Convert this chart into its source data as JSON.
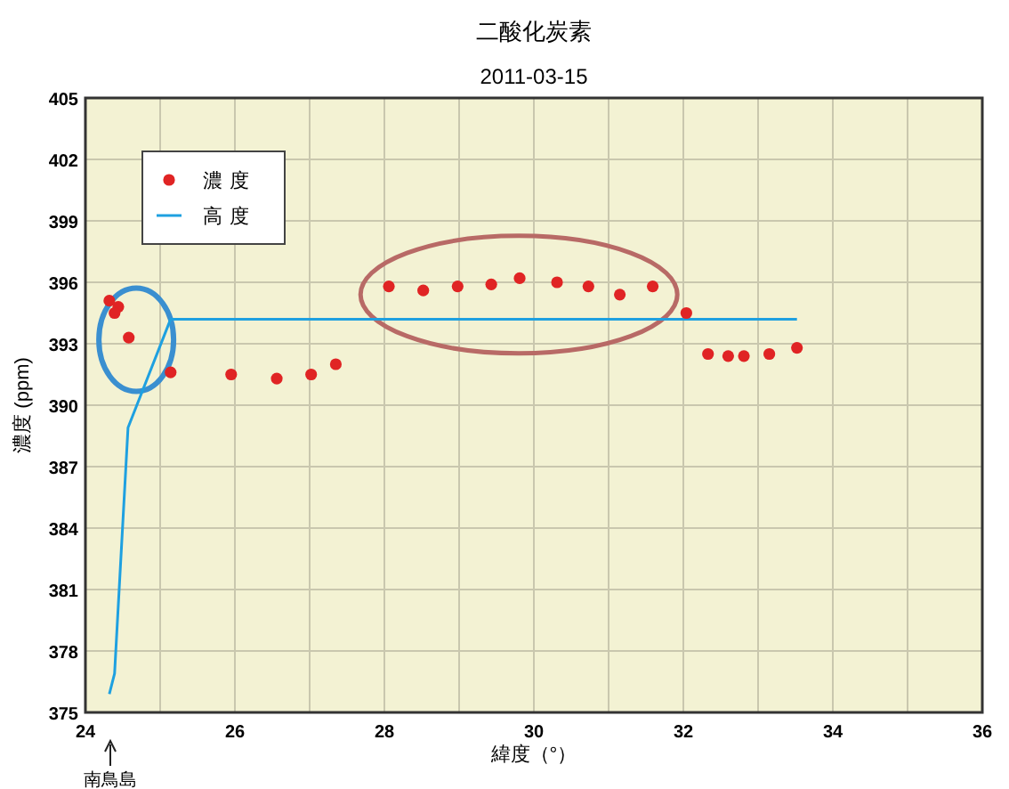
{
  "chart_data": {
    "type": "scatter",
    "title": "二酸化炭素",
    "subtitle": "2011-03-15",
    "xlabel": "緯度（°）",
    "ylabel": "濃度 (ppm)",
    "xlim": [
      24,
      36
    ],
    "ylim": [
      375,
      405
    ],
    "xticks": [
      24,
      {
        "value": 25,
        "label": null
      },
      26,
      {
        "value": 27,
        "label": null
      },
      28,
      {
        "value": 29,
        "label": null
      },
      30,
      {
        "value": 31,
        "label": null
      },
      32,
      {
        "value": 33,
        "label": null
      },
      34,
      {
        "value": 35,
        "label": null
      },
      36
    ],
    "yticks": [
      375,
      378,
      381,
      384,
      387,
      390,
      393,
      396,
      399,
      402,
      405
    ],
    "grid": true,
    "legend": "top left",
    "series": [
      {
        "name": "濃度",
        "marker": "circle",
        "color": "#e02424",
        "x": [
          24.32,
          24.44,
          24.39,
          24.58,
          25.14,
          25.95,
          26.56,
          27.02,
          27.35,
          28.06,
          28.52,
          28.98,
          29.43,
          29.81,
          30.31,
          30.73,
          31.15,
          31.59,
          32.04,
          32.33,
          32.6,
          32.81,
          33.15,
          33.52
        ],
        "values": [
          395.1,
          394.8,
          394.5,
          393.3,
          391.6,
          391.5,
          391.3,
          391.5,
          392.0,
          395.8,
          395.6,
          395.8,
          395.9,
          396.2,
          396.0,
          395.8,
          395.4,
          395.8,
          394.5,
          392.5,
          392.4,
          392.4,
          392.5,
          392.8
        ]
      },
      {
        "name": "高度",
        "type": "line",
        "marker": "none",
        "color": "#1ea0e0",
        "x": [
          24.32,
          24.39,
          24.57,
          25.14,
          33.52
        ],
        "values": [
          375.9,
          376.9,
          388.9,
          394.2,
          394.2
        ]
      }
    ],
    "annotations": [
      "南鳥島"
    ]
  }
}
